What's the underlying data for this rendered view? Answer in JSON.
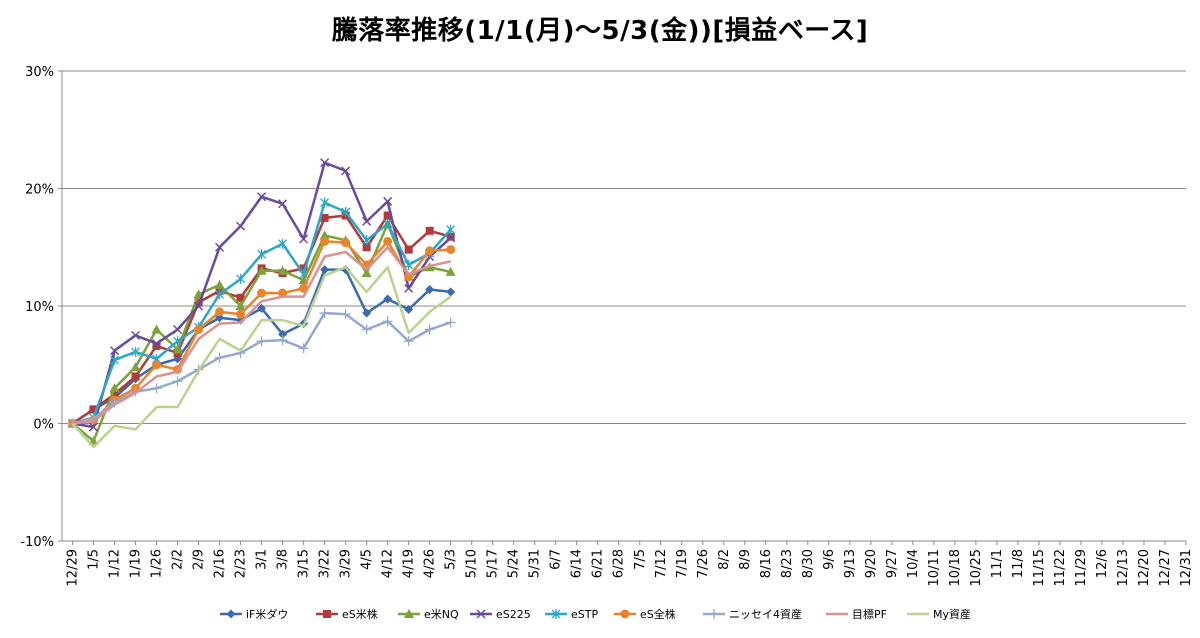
{
  "chart_data": {
    "type": "line",
    "title": "騰落率推移(1/1(月)～5/3(金))[損益ベース]",
    "xlabel": "",
    "ylabel": "",
    "ylim": [
      -0.1,
      0.3
    ],
    "y_ticks": [
      -0.1,
      0.0,
      0.1,
      0.2,
      0.3
    ],
    "y_tick_labels": [
      "-10%",
      "0%",
      "10%",
      "20%",
      "30%"
    ],
    "grid": "horizontal",
    "legend_position": "bottom",
    "categories": [
      "12/29",
      "1/5",
      "1/12",
      "1/19",
      "1/26",
      "2/2",
      "2/9",
      "2/16",
      "2/23",
      "3/1",
      "3/8",
      "3/15",
      "3/22",
      "3/29",
      "4/5",
      "4/12",
      "4/19",
      "4/26",
      "5/3",
      "5/10",
      "5/17",
      "5/24",
      "5/31",
      "6/7",
      "6/14",
      "6/21",
      "6/28",
      "7/5",
      "7/12",
      "7/19",
      "7/26",
      "8/2",
      "8/9",
      "8/16",
      "8/23",
      "8/30",
      "9/6",
      "9/13",
      "9/20",
      "9/27",
      "10/4",
      "10/11",
      "10/18",
      "10/25",
      "11/1",
      "11/8",
      "11/15",
      "11/22",
      "11/29",
      "12/6",
      "12/13",
      "12/20",
      "12/27",
      "12/31"
    ],
    "series": [
      {
        "name": "iF米ダウ",
        "color": "#3B6AAE",
        "marker": "diamond",
        "x": [
          "12/29",
          "1/5",
          "1/12",
          "1/19",
          "1/26",
          "2/2",
          "2/9",
          "2/16",
          "2/23",
          "3/1",
          "3/8",
          "3/15",
          "3/22",
          "3/29",
          "4/5",
          "4/12",
          "4/19",
          "4/26",
          "5/3"
        ],
        "values": [
          0.0,
          0.012,
          0.022,
          0.038,
          0.05,
          0.055,
          0.08,
          0.09,
          0.088,
          0.098,
          0.076,
          0.085,
          0.131,
          0.131,
          0.094,
          0.106,
          0.097,
          0.114,
          0.112
        ]
      },
      {
        "name": "eS米株",
        "color": "#B33A3A",
        "marker": "square",
        "x": [
          "12/29",
          "1/5",
          "1/12",
          "1/19",
          "1/26",
          "2/2",
          "2/9",
          "2/16",
          "2/23",
          "3/1",
          "3/8",
          "3/15",
          "3/22",
          "3/29",
          "4/5",
          "4/12",
          "4/19",
          "4/26",
          "5/3"
        ],
        "values": [
          0.0,
          0.012,
          0.025,
          0.04,
          0.066,
          0.06,
          0.103,
          0.113,
          0.107,
          0.132,
          0.128,
          0.132,
          0.175,
          0.177,
          0.15,
          0.177,
          0.148,
          0.164,
          0.159
        ]
      },
      {
        "name": "e米NQ",
        "color": "#7BA33A",
        "marker": "triangle",
        "x": [
          "12/29",
          "1/5",
          "1/12",
          "1/19",
          "1/26",
          "2/2",
          "2/9",
          "2/16",
          "2/23",
          "3/1",
          "3/8",
          "3/15",
          "3/22",
          "3/29",
          "4/5",
          "4/12",
          "4/19",
          "4/26",
          "5/3"
        ],
        "values": [
          0.0,
          -0.015,
          0.03,
          0.048,
          0.08,
          0.063,
          0.11,
          0.118,
          0.1,
          0.13,
          0.13,
          0.122,
          0.16,
          0.156,
          0.128,
          0.17,
          0.125,
          0.133,
          0.129
        ]
      },
      {
        "name": "eS225",
        "color": "#6A4A9B",
        "marker": "x",
        "x": [
          "12/29",
          "1/5",
          "1/12",
          "1/19",
          "1/26",
          "2/2",
          "2/9",
          "2/16",
          "2/23",
          "3/1",
          "3/8",
          "3/15",
          "3/22",
          "3/29",
          "4/5",
          "4/12",
          "4/19",
          "4/26",
          "5/3"
        ],
        "values": [
          0.0,
          -0.003,
          0.062,
          0.075,
          0.068,
          0.08,
          0.1,
          0.15,
          0.168,
          0.193,
          0.187,
          0.157,
          0.222,
          0.215,
          0.172,
          0.189,
          0.115,
          0.142,
          0.158
        ]
      },
      {
        "name": "eSTP",
        "color": "#2EA6C8",
        "marker": "asterisk",
        "x": [
          "12/29",
          "1/5",
          "1/12",
          "1/19",
          "1/26",
          "2/2",
          "2/9",
          "2/16",
          "2/23",
          "3/1",
          "3/8",
          "3/15",
          "3/22",
          "3/29",
          "4/5",
          "4/12",
          "4/19",
          "4/26",
          "5/3"
        ],
        "values": [
          0.0,
          0.005,
          0.054,
          0.061,
          0.055,
          0.07,
          0.082,
          0.11,
          0.123,
          0.144,
          0.153,
          0.127,
          0.188,
          0.18,
          0.156,
          0.17,
          0.135,
          0.145,
          0.165
        ]
      },
      {
        "name": "eS全株",
        "color": "#E8842C",
        "marker": "circle",
        "x": [
          "12/29",
          "1/5",
          "1/12",
          "1/19",
          "1/26",
          "2/2",
          "2/9",
          "2/16",
          "2/23",
          "3/1",
          "3/8",
          "3/15",
          "3/22",
          "3/29",
          "4/5",
          "4/12",
          "4/19",
          "4/26",
          "5/3"
        ],
        "values": [
          0.0,
          0.003,
          0.02,
          0.03,
          0.05,
          0.046,
          0.08,
          0.095,
          0.093,
          0.111,
          0.111,
          0.115,
          0.155,
          0.154,
          0.135,
          0.155,
          0.125,
          0.147,
          0.148
        ]
      },
      {
        "name": "ニッセイ4資産",
        "color": "#94A9D0",
        "marker": "plus",
        "x": [
          "12/29",
          "1/5",
          "1/12",
          "1/19",
          "1/26",
          "2/2",
          "2/9",
          "2/16",
          "2/23",
          "3/1",
          "3/8",
          "3/15",
          "3/22",
          "3/29",
          "4/5",
          "4/12",
          "4/19",
          "4/26",
          "5/3"
        ],
        "values": [
          0.0,
          0.004,
          0.018,
          0.027,
          0.03,
          0.036,
          0.046,
          0.056,
          0.06,
          0.07,
          0.071,
          0.064,
          0.094,
          0.093,
          0.08,
          0.087,
          0.07,
          0.08,
          0.086
        ]
      },
      {
        "name": "目標PF",
        "color": "#DC9090",
        "marker": "none",
        "x": [
          "12/29",
          "1/5",
          "1/12",
          "1/19",
          "1/26",
          "2/2",
          "2/9",
          "2/16",
          "2/23",
          "3/1",
          "3/8",
          "3/15",
          "3/22",
          "3/29",
          "4/5",
          "4/12",
          "4/19",
          "4/26",
          "5/3"
        ],
        "values": [
          0.0,
          0.002,
          0.016,
          0.026,
          0.04,
          0.044,
          0.072,
          0.085,
          0.086,
          0.104,
          0.108,
          0.108,
          0.142,
          0.146,
          0.131,
          0.15,
          0.127,
          0.134,
          0.138
        ]
      },
      {
        "name": "My資産",
        "color": "#B8D48C",
        "marker": "none",
        "x": [
          "12/29",
          "1/5",
          "1/12",
          "1/19",
          "1/26",
          "2/2",
          "2/9",
          "2/16",
          "2/23",
          "3/1",
          "3/8",
          "3/15",
          "3/22",
          "3/29",
          "4/5",
          "4/12",
          "4/19",
          "4/26",
          "5/3"
        ],
        "values": [
          0.0,
          -0.02,
          -0.002,
          -0.005,
          0.014,
          0.014,
          0.045,
          0.072,
          0.062,
          0.088,
          0.088,
          0.083,
          0.126,
          0.133,
          0.112,
          0.133,
          0.077,
          0.095,
          0.108
        ]
      }
    ]
  }
}
